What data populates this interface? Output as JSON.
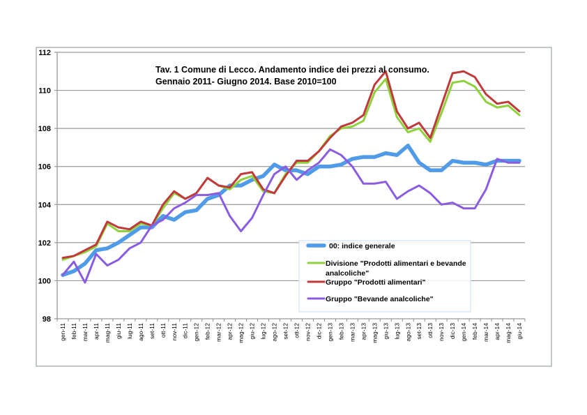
{
  "chart_data": {
    "type": "line",
    "title": [
      "Tav. 1 Comune di Lecco. Andamento indice dei prezzi al consumo.",
      "Gennaio 2011- Giugno 2014. Base 2010=100"
    ],
    "xlabel": "",
    "ylabel": "",
    "ylim": [
      98,
      112
    ],
    "yticks": [
      98,
      100,
      102,
      104,
      106,
      108,
      110,
      112
    ],
    "grid": true,
    "legend_position": "bottom-center",
    "categories": [
      "gen-11",
      "feb-11",
      "mar-11",
      "apr-11",
      "mag-11",
      "giu-11",
      "lug-11",
      "ago-11",
      "set-11",
      "ott-11",
      "nov-11",
      "dic-11",
      "gen-12",
      "feb-12",
      "mar-12",
      "apr-12",
      "mag-12",
      "giu-12",
      "lug-12",
      "ago-12",
      "set-12",
      "ott-12",
      "nov-12",
      "dic-12",
      "gen-13",
      "feb-13",
      "mar-13",
      "apr-13",
      "mag-13",
      "giu-13",
      "lug-13",
      "ago-13",
      "set-13",
      "ott-13",
      "nov-13",
      "dic-13",
      "gen-14",
      "feb-14",
      "mar-14",
      "apr-14",
      "mag-14",
      "giu-14"
    ],
    "series": [
      {
        "name": "00: indice generale",
        "color": "#4f9be8",
        "legend": [
          "00: indice generale"
        ],
        "values": [
          100.3,
          100.5,
          100.9,
          101.6,
          101.7,
          102.0,
          102.4,
          102.8,
          102.8,
          103.4,
          103.2,
          103.6,
          103.7,
          104.3,
          104.5,
          105.0,
          105.0,
          105.3,
          105.5,
          106.1,
          105.8,
          105.8,
          105.6,
          106.0,
          106.0,
          106.1,
          106.4,
          106.5,
          106.5,
          106.7,
          106.6,
          107.1,
          106.2,
          105.8,
          105.8,
          106.3,
          106.2,
          106.2,
          106.1,
          106.3,
          106.3,
          106.3
        ]
      },
      {
        "name": "Divisione \"Prodotti alimentari e bevande analcoliche\"",
        "color": "#8fd13a",
        "legend": [
          "Divisione \"Prodotti alimentari e bevande",
          "analcoliche\""
        ],
        "values": [
          101.1,
          101.3,
          101.5,
          101.8,
          103.0,
          102.6,
          102.6,
          103.0,
          102.9,
          103.8,
          104.6,
          104.3,
          104.6,
          105.4,
          105.0,
          104.8,
          105.3,
          105.5,
          104.7,
          104.6,
          105.6,
          106.2,
          106.2,
          106.8,
          107.6,
          108.0,
          108.1,
          108.4,
          109.9,
          110.6,
          108.6,
          107.8,
          108.0,
          107.3,
          108.8,
          110.4,
          110.5,
          110.2,
          109.4,
          109.1,
          109.2,
          108.7
        ]
      },
      {
        "name": "Gruppo \"Prodotti alimentari\"",
        "color": "#c0393b",
        "legend": [
          "Gruppo \"Prodotti alimentari\""
        ],
        "values": [
          101.2,
          101.3,
          101.6,
          101.9,
          103.1,
          102.8,
          102.7,
          103.1,
          102.9,
          104.0,
          104.7,
          104.3,
          104.6,
          105.4,
          105.0,
          104.9,
          105.6,
          105.7,
          104.8,
          104.6,
          105.5,
          106.3,
          106.3,
          106.8,
          107.5,
          108.1,
          108.3,
          108.7,
          110.3,
          111.0,
          108.9,
          108.0,
          108.3,
          107.5,
          109.2,
          110.9,
          111.0,
          110.7,
          109.8,
          109.3,
          109.4,
          108.9
        ]
      },
      {
        "name": "Gruppo \"Bevande analcoliche\"",
        "color": "#8a5ce0",
        "legend": [
          "Gruppo \"Bevande analcoliche\""
        ],
        "values": [
          100.3,
          101.0,
          99.9,
          101.4,
          100.8,
          101.1,
          101.7,
          102.0,
          102.9,
          103.2,
          103.8,
          104.1,
          104.5,
          104.5,
          104.6,
          103.4,
          102.6,
          103.3,
          104.5,
          105.6,
          106.0,
          105.3,
          105.8,
          106.2,
          106.9,
          106.6,
          106.0,
          105.1,
          105.1,
          105.2,
          104.3,
          104.7,
          105.0,
          104.6,
          104.0,
          104.1,
          103.8,
          103.8,
          104.8,
          106.4,
          106.2,
          106.2
        ]
      }
    ]
  }
}
